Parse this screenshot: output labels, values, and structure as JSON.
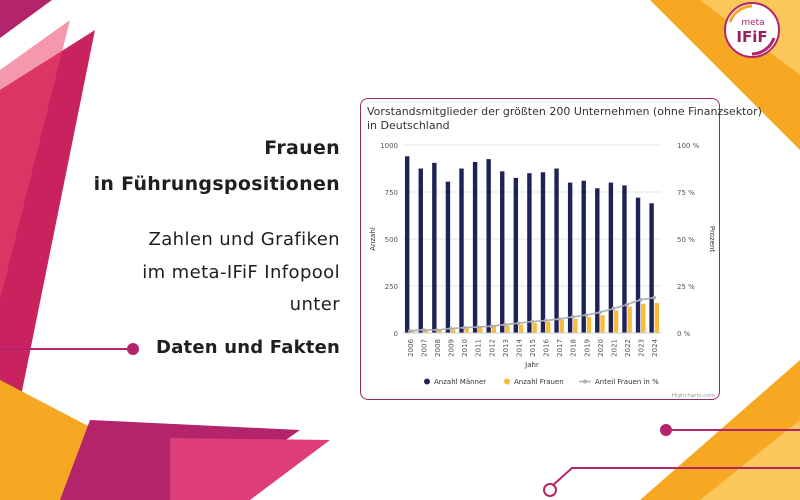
{
  "headline": {
    "line1": "Frauen",
    "line2": "in Führungspositionen"
  },
  "subline": {
    "line1": "Zahlen und Grafiken",
    "line2": "im meta-IFiF Infopool",
    "line3": "unter"
  },
  "cta": "Daten und Fakten",
  "logo": {
    "top": "meta",
    "bottom": "IFiF"
  },
  "colors": {
    "magenta": "#b3246a",
    "orange": "#f7a823",
    "navy": "#1f2256",
    "yellow": "#f9bb3c",
    "gray_line": "#a9adb3"
  },
  "chart_data": {
    "type": "bar",
    "title": "Vorstandsmitglieder der größten 200 Unternehmen (ohne Finanzsektor) in Deutschland",
    "xlabel": "Jahr",
    "ylabel": "Anzahl",
    "y2label": "Prozent",
    "ylim": [
      0,
      1000
    ],
    "y2lim": [
      0,
      100
    ],
    "yticks": [
      "0",
      "250",
      "500",
      "750",
      "1000"
    ],
    "y2ticks": [
      "0 %",
      "25 %",
      "50 %",
      "75 %",
      "100 %"
    ],
    "categories": [
      "2006",
      "2007",
      "2008",
      "2009",
      "2010",
      "2011",
      "2012",
      "2013",
      "2014",
      "2015",
      "2016",
      "2017",
      "2018",
      "2019",
      "2020",
      "2021",
      "2022",
      "2023",
      "2024"
    ],
    "series": [
      {
        "name": "Anzahl Männer",
        "kind": "bar",
        "color": "#1f2256",
        "values": [
          940,
          875,
          905,
          805,
          875,
          910,
          925,
          860,
          825,
          850,
          855,
          875,
          800,
          810,
          770,
          800,
          785,
          720,
          690
        ]
      },
      {
        "name": "Anzahl Frauen",
        "kind": "bar",
        "color": "#f9bb3c",
        "values": [
          10,
          15,
          15,
          20,
          25,
          30,
          35,
          40,
          45,
          55,
          60,
          70,
          75,
          85,
          95,
          120,
          140,
          155,
          160
        ]
      },
      {
        "name": "Anteil Frauen in %",
        "kind": "line",
        "color": "#a9adb3",
        "values": [
          1.1,
          1.7,
          1.6,
          2.4,
          2.8,
          3.2,
          3.6,
          4.4,
          5.2,
          6.1,
          6.6,
          7.4,
          8.6,
          9.5,
          11.0,
          13.0,
          15.1,
          17.7,
          18.8
        ]
      }
    ],
    "legend_position": "bottom",
    "credits": "Highcharts.com",
    "grid": true
  }
}
